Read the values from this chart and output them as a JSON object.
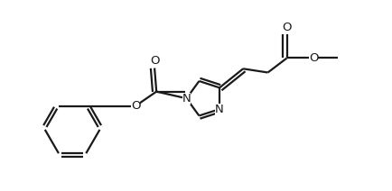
{
  "background": "#ffffff",
  "line_color": "#1a1a1a",
  "line_width": 1.6,
  "fig_width": 4.34,
  "fig_height": 2.12,
  "dpi": 100,
  "xlim": [
    0.0,
    10.0
  ],
  "ylim": [
    0.5,
    5.5
  ],
  "label_fontsize": 9.5
}
